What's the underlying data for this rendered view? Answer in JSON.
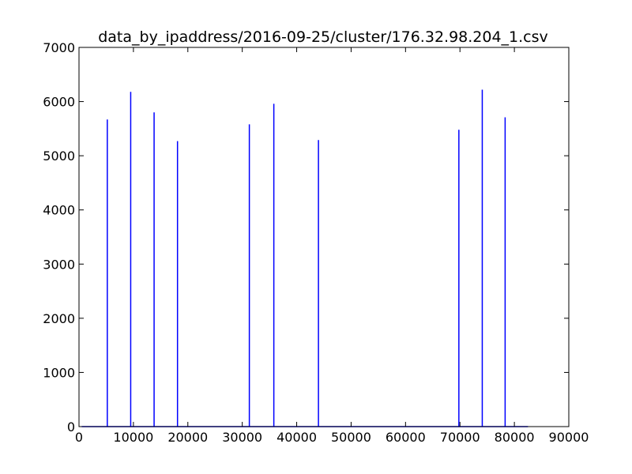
{
  "chart_data": {
    "type": "line",
    "title": "data_by_ipaddress/2016-09-25/cluster/176.32.98.204_1.csv",
    "xlabel": "",
    "ylabel": "",
    "xlim": [
      0,
      90000
    ],
    "ylim": [
      0,
      7000
    ],
    "x_ticks": [
      0,
      10000,
      20000,
      30000,
      40000,
      50000,
      60000,
      70000,
      80000,
      90000
    ],
    "y_ticks": [
      0,
      1000,
      2000,
      3000,
      4000,
      5000,
      6000,
      7000
    ],
    "grid": false,
    "legend": "none",
    "baseline_x_range": [
      500,
      82500
    ],
    "series": [
      {
        "color": "#0000ff",
        "spikes": [
          {
            "x": 5200,
            "y": 5670
          },
          {
            "x": 9500,
            "y": 6180
          },
          {
            "x": 13800,
            "y": 5800
          },
          {
            "x": 18100,
            "y": 5270
          },
          {
            "x": 31300,
            "y": 5580
          },
          {
            "x": 35800,
            "y": 5960
          },
          {
            "x": 44000,
            "y": 5290
          },
          {
            "x": 69800,
            "y": 5480
          },
          {
            "x": 74100,
            "y": 6220
          },
          {
            "x": 78300,
            "y": 5710
          }
        ]
      }
    ]
  }
}
